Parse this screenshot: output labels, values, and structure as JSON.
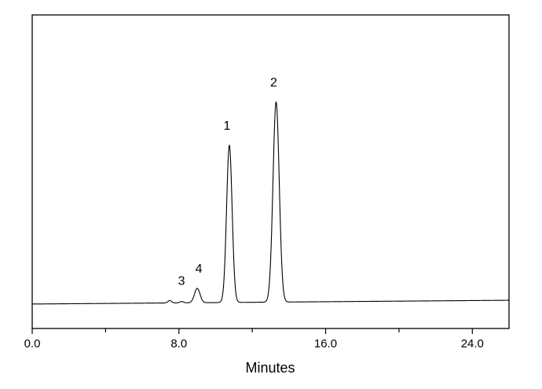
{
  "chart_data": {
    "type": "line",
    "title": "",
    "xlabel": "Minutes",
    "ylabel": "",
    "xlim": [
      0,
      26
    ],
    "ylim": [
      0,
      100
    ],
    "x_ticks": [
      "0.0",
      "8.0",
      "16.0",
      "24.0"
    ],
    "x_tick_values": [
      0,
      8,
      16,
      24
    ],
    "x_minor_tick_values": [
      4,
      12,
      20
    ],
    "y_ticks": [],
    "grid": false,
    "legend": "none",
    "line_color": "#000000",
    "baseline": {
      "start": 7.8,
      "end": 9.0
    },
    "peaks": [
      {
        "label": "1",
        "retention_time": 10.75,
        "height": 58.4,
        "width_sigma": 0.15
      },
      {
        "label": "2",
        "retention_time": 13.3,
        "height": 72.2,
        "width_sigma": 0.17
      },
      {
        "label": "3",
        "retention_time": 7.5,
        "height": 8.9,
        "width_sigma": 0.1
      },
      {
        "label": "4",
        "retention_time": 9.0,
        "height": 12.8,
        "width_sigma": 0.15
      }
    ],
    "minor_bumps": [
      {
        "retention_time": 8.15,
        "height": 8.6,
        "width_sigma": 0.1
      }
    ]
  }
}
